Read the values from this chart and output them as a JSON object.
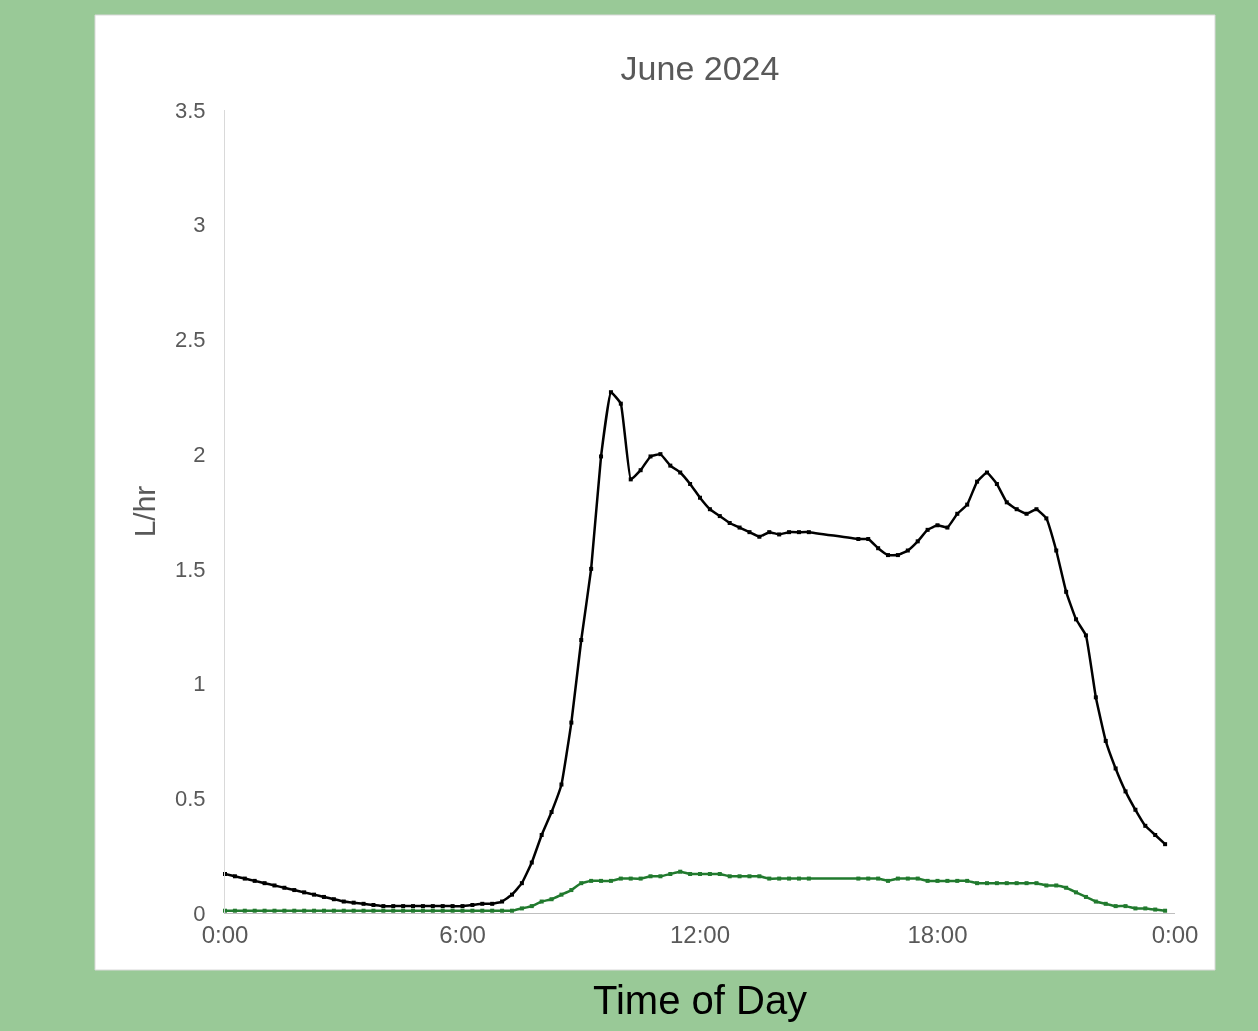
{
  "chart_data": {
    "type": "line",
    "title": "June 2024",
    "xlabel": "Time of Day",
    "ylabel": "L/hr",
    "xlim": [
      0,
      24
    ],
    "xticks": [
      {
        "value": 0,
        "label": "0:00"
      },
      {
        "value": 6,
        "label": "6:00"
      },
      {
        "value": 12,
        "label": "12:00"
      },
      {
        "value": 18,
        "label": "18:00"
      },
      {
        "value": 24,
        "label": "0:00"
      }
    ],
    "ylim": [
      0,
      3.5
    ],
    "yticks": [
      0,
      0.5,
      1,
      1.5,
      2,
      2.5,
      3,
      3.5
    ],
    "grid": false,
    "marker": "square",
    "line_style": "solid",
    "series": [
      {
        "color": "#000000",
        "x": [
          0,
          0.25,
          0.5,
          0.75,
          1,
          1.25,
          1.5,
          1.75,
          2,
          2.25,
          2.5,
          2.75,
          3,
          3.25,
          3.5,
          3.75,
          4,
          4.25,
          4.5,
          4.75,
          5,
          5.25,
          5.5,
          5.75,
          6,
          6.25,
          6.5,
          6.75,
          7,
          7.25,
          7.5,
          7.75,
          8,
          8.25,
          8.5,
          8.75,
          9,
          9.25,
          9.5,
          9.75,
          10,
          10.25,
          10.5,
          10.75,
          11,
          11.25,
          11.5,
          11.75,
          12,
          12.25,
          12.5,
          12.75,
          13,
          13.25,
          13.5,
          13.75,
          14,
          14.25,
          14.5,
          14.75,
          16,
          16.25,
          16.5,
          16.75,
          17,
          17.25,
          17.5,
          17.75,
          18,
          18.25,
          18.5,
          18.75,
          19,
          19.25,
          19.5,
          19.75,
          20,
          20.25,
          20.5,
          20.75,
          21,
          21.25,
          21.5,
          21.75,
          22,
          22.25,
          22.5,
          22.75,
          23,
          23.25,
          23.5,
          23.75
        ],
        "values": [
          0.17,
          0.16,
          0.15,
          0.14,
          0.13,
          0.12,
          0.11,
          0.1,
          0.09,
          0.08,
          0.07,
          0.06,
          0.05,
          0.045,
          0.04,
          0.035,
          0.03,
          0.03,
          0.03,
          0.03,
          0.03,
          0.03,
          0.03,
          0.03,
          0.03,
          0.035,
          0.04,
          0.04,
          0.05,
          0.08,
          0.13,
          0.22,
          0.34,
          0.44,
          0.56,
          0.83,
          1.19,
          1.5,
          1.99,
          2.27,
          2.22,
          1.89,
          1.93,
          1.99,
          2.0,
          1.95,
          1.92,
          1.87,
          1.81,
          1.76,
          1.73,
          1.7,
          1.68,
          1.66,
          1.64,
          1.66,
          1.65,
          1.66,
          1.66,
          1.66,
          1.63,
          1.63,
          1.59,
          1.56,
          1.56,
          1.58,
          1.62,
          1.67,
          1.69,
          1.68,
          1.74,
          1.78,
          1.88,
          1.92,
          1.87,
          1.79,
          1.76,
          1.74,
          1.76,
          1.72,
          1.58,
          1.4,
          1.28,
          1.21,
          0.94,
          0.75,
          0.63,
          0.53,
          0.45,
          0.38,
          0.34,
          0.3
        ]
      },
      {
        "color": "#217a2e",
        "x": [
          0,
          0.25,
          0.5,
          0.75,
          1,
          1.25,
          1.5,
          1.75,
          2,
          2.25,
          2.5,
          2.75,
          3,
          3.25,
          3.5,
          3.75,
          4,
          4.25,
          4.5,
          4.75,
          5,
          5.25,
          5.5,
          5.75,
          6,
          6.25,
          6.5,
          6.75,
          7,
          7.25,
          7.5,
          7.75,
          8,
          8.25,
          8.5,
          8.75,
          9,
          9.25,
          9.5,
          9.75,
          10,
          10.25,
          10.5,
          10.75,
          11,
          11.25,
          11.5,
          11.75,
          12,
          12.25,
          12.5,
          12.75,
          13,
          13.25,
          13.5,
          13.75,
          14,
          14.25,
          14.5,
          14.75,
          16,
          16.25,
          16.5,
          16.75,
          17,
          17.25,
          17.5,
          17.75,
          18,
          18.25,
          18.5,
          18.75,
          19,
          19.25,
          19.5,
          19.75,
          20,
          20.25,
          20.5,
          20.75,
          21,
          21.25,
          21.5,
          21.75,
          22,
          22.25,
          22.5,
          22.75,
          23,
          23.25,
          23.5,
          23.75
        ],
        "values": [
          0.01,
          0.01,
          0.01,
          0.01,
          0.01,
          0.01,
          0.01,
          0.01,
          0.01,
          0.01,
          0.01,
          0.01,
          0.01,
          0.01,
          0.01,
          0.01,
          0.01,
          0.01,
          0.01,
          0.01,
          0.01,
          0.01,
          0.01,
          0.01,
          0.01,
          0.01,
          0.01,
          0.01,
          0.01,
          0.01,
          0.02,
          0.03,
          0.05,
          0.06,
          0.08,
          0.1,
          0.13,
          0.14,
          0.14,
          0.14,
          0.15,
          0.15,
          0.15,
          0.16,
          0.16,
          0.17,
          0.18,
          0.17,
          0.17,
          0.17,
          0.17,
          0.16,
          0.16,
          0.16,
          0.16,
          0.15,
          0.15,
          0.15,
          0.15,
          0.15,
          0.15,
          0.15,
          0.15,
          0.14,
          0.15,
          0.15,
          0.15,
          0.14,
          0.14,
          0.14,
          0.14,
          0.14,
          0.13,
          0.13,
          0.13,
          0.13,
          0.13,
          0.13,
          0.13,
          0.12,
          0.12,
          0.11,
          0.09,
          0.07,
          0.05,
          0.04,
          0.03,
          0.03,
          0.02,
          0.02,
          0.015,
          0.01
        ]
      }
    ]
  }
}
